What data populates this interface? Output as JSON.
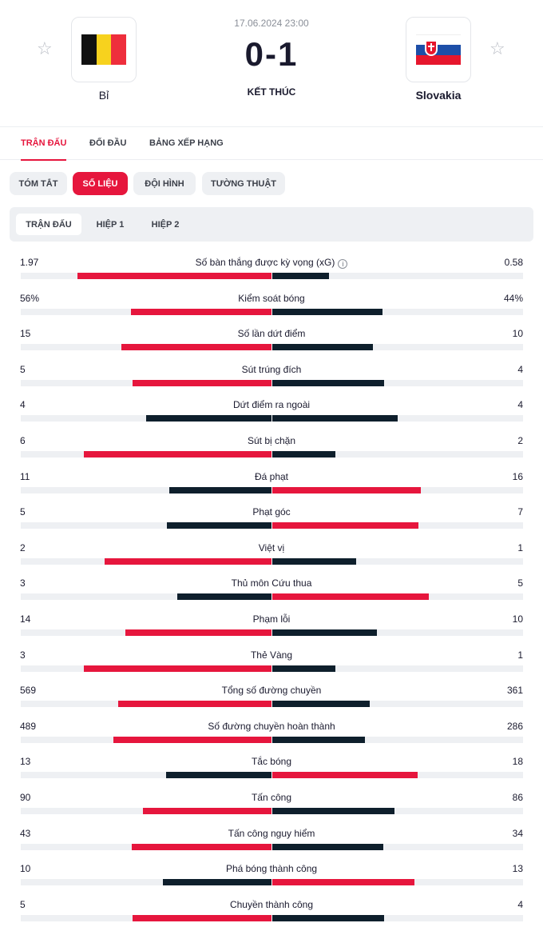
{
  "match": {
    "datetime": "17.06.2024 23:00",
    "score": "0-1",
    "status": "KẾT THÚC",
    "home_team": "Bỉ",
    "away_team": "Slovakia"
  },
  "icons": {
    "favorite": "star-outline-icon",
    "info": "info-icon"
  },
  "main_tabs": [
    {
      "label": "TRẬN ĐẤU",
      "active": true
    },
    {
      "label": "ĐỐI ĐẦU",
      "active": false
    },
    {
      "label": "BẢNG XẾP HẠNG",
      "active": false
    }
  ],
  "sub_tabs": [
    {
      "label": "TÓM TẮT",
      "active": false
    },
    {
      "label": "SỐ LIỆU",
      "active": true
    },
    {
      "label": "ĐỘI HÌNH",
      "active": false
    },
    {
      "label": "TƯỜNG THUẬT",
      "active": false
    }
  ],
  "periods": [
    {
      "label": "TRẬN ĐẤU",
      "active": true
    },
    {
      "label": "HIỆP 1",
      "active": false
    },
    {
      "label": "HIỆP 2",
      "active": false
    }
  ],
  "colors": {
    "accent": "#e6163d",
    "dark": "#0e1f2c",
    "track": "#eef0f3"
  },
  "stats": [
    {
      "label": "Số bàn thắng được kỳ vọng (xG)",
      "home": "1.97",
      "away": "0.58",
      "home_value": 1.97,
      "away_value": 0.58,
      "info": true
    },
    {
      "label": "Kiểm soát bóng",
      "home": "56%",
      "away": "44%",
      "home_value": 56,
      "away_value": 44
    },
    {
      "label": "Số lần dứt điểm",
      "home": "15",
      "away": "10",
      "home_value": 15,
      "away_value": 10
    },
    {
      "label": "Sút trúng đích",
      "home": "5",
      "away": "4",
      "home_value": 5,
      "away_value": 4
    },
    {
      "label": "Dứt điểm ra ngoài",
      "home": "4",
      "away": "4",
      "home_value": 4,
      "away_value": 4
    },
    {
      "label": "Sút bị chặn",
      "home": "6",
      "away": "2",
      "home_value": 6,
      "away_value": 2
    },
    {
      "label": "Đá phạt",
      "home": "11",
      "away": "16",
      "home_value": 11,
      "away_value": 16
    },
    {
      "label": "Phạt góc",
      "home": "5",
      "away": "7",
      "home_value": 5,
      "away_value": 7
    },
    {
      "label": "Việt vị",
      "home": "2",
      "away": "1",
      "home_value": 2,
      "away_value": 1
    },
    {
      "label": "Thủ môn Cứu thua",
      "home": "3",
      "away": "5",
      "home_value": 3,
      "away_value": 5
    },
    {
      "label": "Phạm lỗi",
      "home": "14",
      "away": "10",
      "home_value": 14,
      "away_value": 10
    },
    {
      "label": "Thẻ Vàng",
      "home": "3",
      "away": "1",
      "home_value": 3,
      "away_value": 1
    },
    {
      "label": "Tổng số đường chuyền",
      "home": "569",
      "away": "361",
      "home_value": 569,
      "away_value": 361
    },
    {
      "label": "Số đường chuyền hoàn thành",
      "home": "489",
      "away": "286",
      "home_value": 489,
      "away_value": 286
    },
    {
      "label": "Tắc bóng",
      "home": "13",
      "away": "18",
      "home_value": 13,
      "away_value": 18
    },
    {
      "label": "Tấn công",
      "home": "90",
      "away": "86",
      "home_value": 90,
      "away_value": 86
    },
    {
      "label": "Tấn công nguy hiểm",
      "home": "43",
      "away": "34",
      "home_value": 43,
      "away_value": 34
    },
    {
      "label": "Phá bóng thành công",
      "home": "10",
      "away": "13",
      "home_value": 10,
      "away_value": 13
    },
    {
      "label": "Chuyền thành công",
      "home": "5",
      "away": "4",
      "home_value": 5,
      "away_value": 4
    }
  ]
}
